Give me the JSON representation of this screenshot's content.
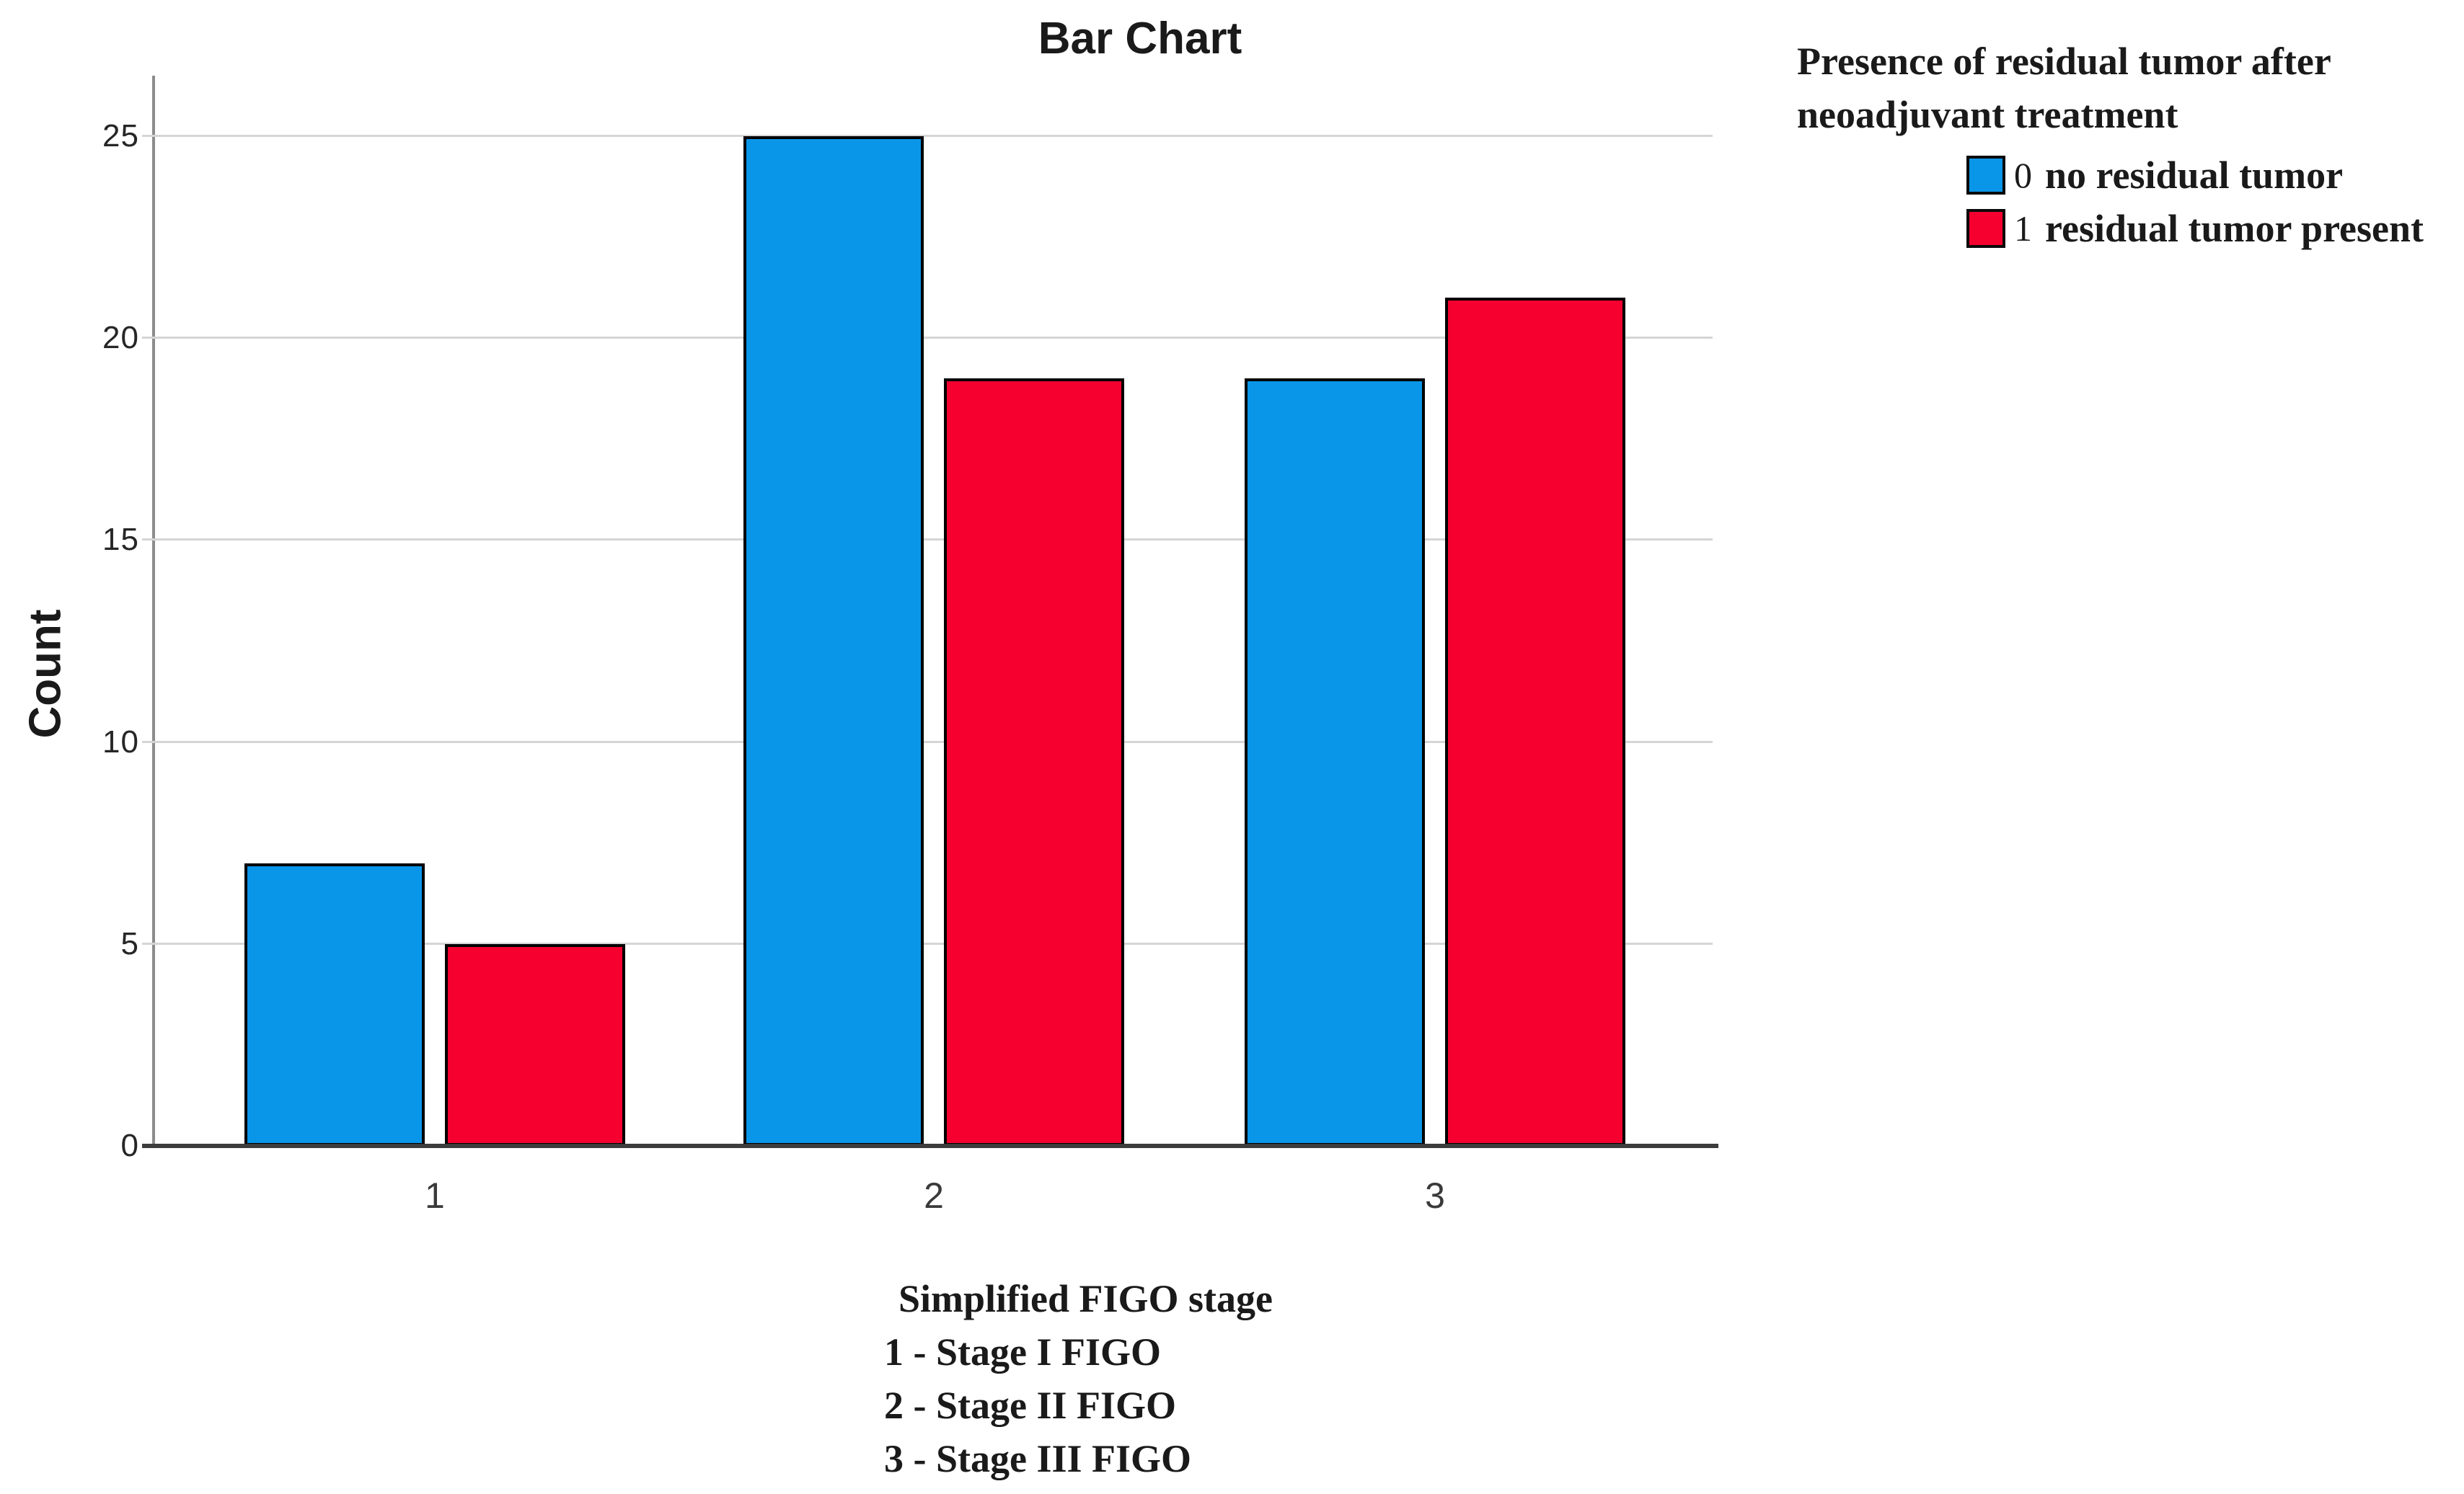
{
  "chart_data": {
    "type": "bar",
    "title": "Bar Chart",
    "ylabel": "Count",
    "xlabel": "Simplified FIGO stage",
    "categories": [
      "1",
      "2",
      "3"
    ],
    "series": [
      {
        "code": "0",
        "label": "no residual tumor",
        "color": "#0a96e8",
        "values": [
          7,
          25,
          19
        ]
      },
      {
        "code": "1",
        "label": "residual tumor present",
        "color": "#f5002f",
        "values": [
          5,
          19,
          21
        ]
      }
    ],
    "yticks": [
      0,
      5,
      10,
      15,
      20,
      25
    ],
    "ylim": [
      0,
      26.5
    ],
    "grid": true,
    "legend_position": "top-right",
    "legend_title_lines": [
      "Presence of residual tumor after",
      "neoadjuvant treatment"
    ],
    "footnote_lines": [
      "Simplified FIGO stage",
      "1 - Stage I FIGO",
      "2 - Stage II FIGO",
      "3 - Stage III FIGO"
    ],
    "colors": {
      "bar_border": "#000000",
      "gridline": "#d5d5d5",
      "y_axis_line": "#8c8c8c",
      "x_axis_line": "#3c3c3c",
      "text": "#1a1a1a"
    }
  }
}
